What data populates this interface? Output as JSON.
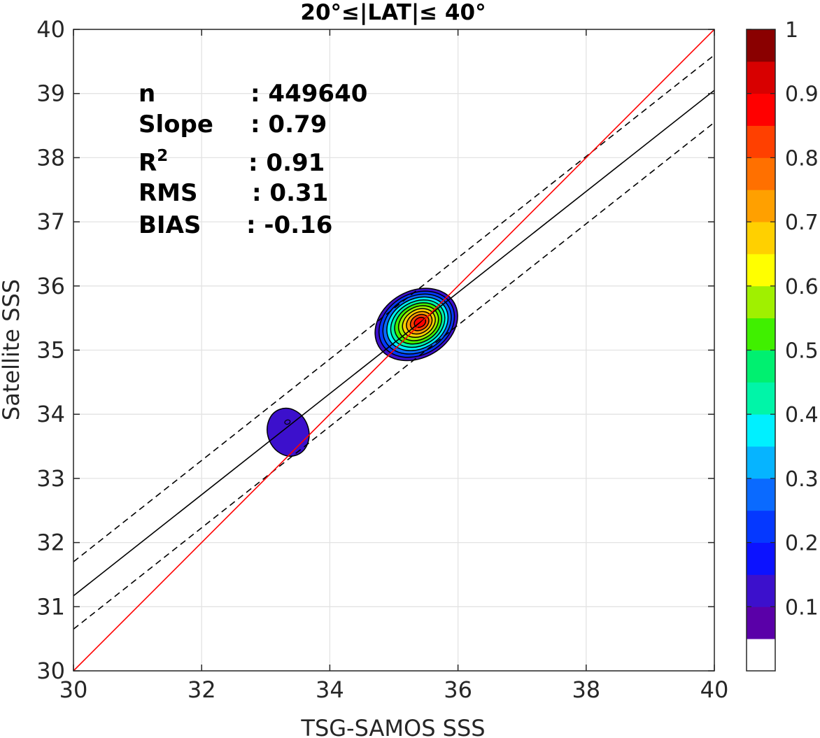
{
  "chart_data": {
    "type": "contour-density-scatter",
    "title": "20°≤|LAT|≤ 40°",
    "xlabel": "TSG-SAMOS SSS",
    "ylabel": "Satellite SSS",
    "xlim": [
      30,
      40
    ],
    "ylim": [
      30,
      40
    ],
    "xticks": [
      "30",
      "32",
      "34",
      "36",
      "38",
      "40"
    ],
    "yticks": [
      "30",
      "31",
      "32",
      "33",
      "34",
      "35",
      "36",
      "37",
      "38",
      "39",
      "40"
    ],
    "grid": true,
    "stats": [
      {
        "label": "n",
        "value": ": 449640"
      },
      {
        "label": "Slope",
        "value": ": 0.79"
      },
      {
        "label": "R",
        "sup": "2",
        "value": ": 0.91"
      },
      {
        "label": "RMS",
        "value": ": 0.31"
      },
      {
        "label": "BIAS",
        "value": ": -0.16"
      }
    ],
    "lines": {
      "one_to_one": {
        "points": [
          [
            30,
            30
          ],
          [
            40,
            40
          ]
        ],
        "color": "#ff0000"
      },
      "fit": {
        "points": [
          [
            30,
            31.17
          ],
          [
            40,
            39.05
          ]
        ],
        "color": "#000000"
      },
      "fit_upper": {
        "points": [
          [
            30,
            31.7
          ],
          [
            40,
            39.6
          ]
        ],
        "color": "#000000",
        "dash": true
      },
      "fit_lower": {
        "points": [
          [
            30,
            30.65
          ],
          [
            40,
            38.55
          ]
        ],
        "color": "#000000",
        "dash": true
      }
    },
    "density_peaks": [
      {
        "cx": 35.35,
        "cy": 35.4,
        "rx": 0.68,
        "ry": 0.52,
        "rotation": 30,
        "levels": 11
      },
      {
        "cx": 33.35,
        "cy": 33.72,
        "rx": 0.32,
        "ry": 0.38,
        "rotation": 20,
        "levels": 1
      }
    ],
    "colorbar": {
      "range": [
        0,
        1
      ],
      "tick_labels": [
        "1",
        "0.9",
        "0.8",
        "0.7",
        "0.6",
        "0.5",
        "0.4",
        "0.3",
        "0.2",
        "0.1"
      ],
      "colors": [
        "#ffffff",
        "#5a00a8",
        "#3c10cc",
        "#0c12ff",
        "#0538ff",
        "#0a6aff",
        "#06b4ff",
        "#00f0ff",
        "#00f5a8",
        "#00f070",
        "#40f000",
        "#a0f000",
        "#ffff00",
        "#ffd000",
        "#ffa000",
        "#ff7000",
        "#ff4000",
        "#ff0000",
        "#d80000",
        "#8a0000"
      ]
    }
  }
}
